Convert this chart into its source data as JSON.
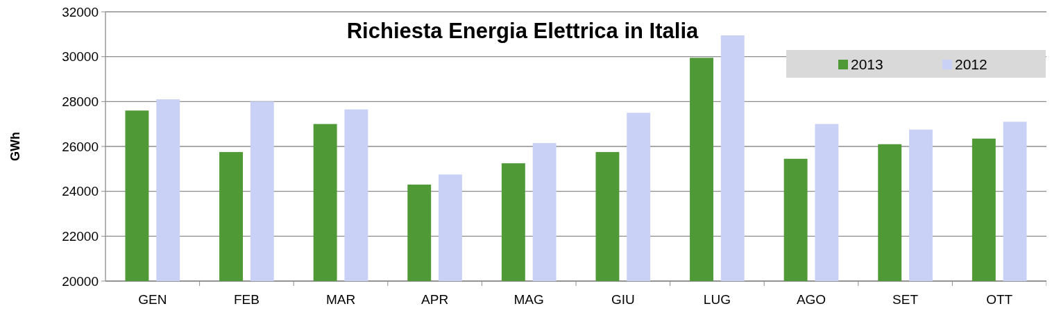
{
  "chart_data": {
    "type": "bar",
    "title": "Richiesta Energia Elettrica in Italia",
    "ylabel": "GWh",
    "categories": [
      "GEN",
      "FEB",
      "MAR",
      "APR",
      "MAG",
      "GIU",
      "LUG",
      "AGO",
      "SET",
      "OTT"
    ],
    "series": [
      {
        "name": "2013",
        "color": "#4f9a36",
        "values": [
          27600,
          25750,
          27000,
          24300,
          25250,
          25750,
          29950,
          25450,
          26100,
          26350
        ]
      },
      {
        "name": "2012",
        "color": "#c9d2f6",
        "values": [
          28100,
          28000,
          27650,
          24750,
          26150,
          27500,
          30950,
          27000,
          26750,
          27100
        ]
      }
    ],
    "ylim": [
      20000,
      32000
    ],
    "yticks": [
      20000,
      22000,
      24000,
      26000,
      28000,
      30000,
      32000
    ],
    "grid": "y",
    "legend": "top right"
  }
}
